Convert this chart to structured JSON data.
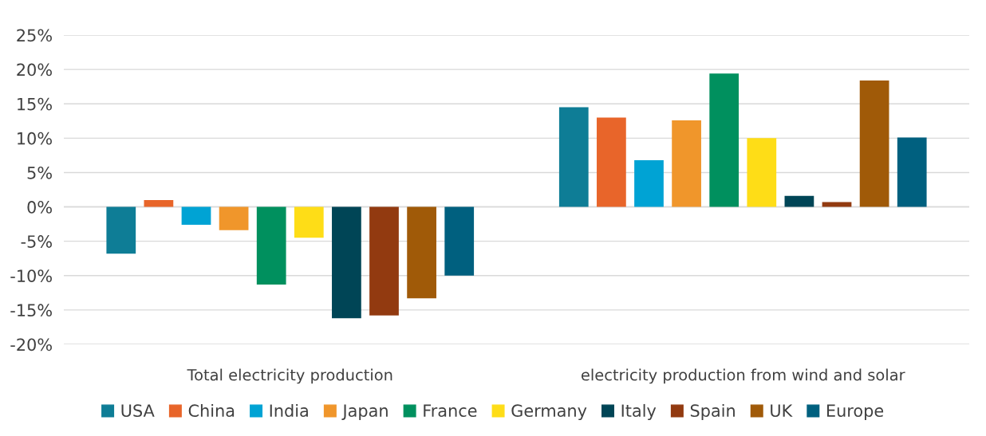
{
  "chart_data": {
    "type": "bar",
    "categories": [
      "Total electricity production",
      "electricity production from wind and solar"
    ],
    "series": [
      {
        "name": "USA",
        "color": "#0e7d96",
        "values": [
          -6.8,
          14.5
        ]
      },
      {
        "name": "China",
        "color": "#e8652a",
        "values": [
          1.0,
          13.0
        ]
      },
      {
        "name": "India",
        "color": "#00a3d4",
        "values": [
          -2.6,
          6.8
        ]
      },
      {
        "name": "Japan",
        "color": "#f0962b",
        "values": [
          -3.4,
          12.6
        ]
      },
      {
        "name": "France",
        "color": "#00905e",
        "values": [
          -11.3,
          19.4
        ]
      },
      {
        "name": "Germany",
        "color": "#fedd17",
        "values": [
          -4.5,
          10.0
        ]
      },
      {
        "name": "Italy",
        "color": "#004556",
        "values": [
          -16.2,
          1.6
        ]
      },
      {
        "name": "Spain",
        "color": "#923a10",
        "values": [
          -15.8,
          0.7
        ]
      },
      {
        "name": "UK",
        "color": "#a05a08",
        "values": [
          -13.3,
          18.4
        ]
      },
      {
        "name": "Europe",
        "color": "#00607f",
        "values": [
          -10.0,
          10.1
        ]
      }
    ],
    "ylim": [
      -20,
      25
    ],
    "yticks": [
      {
        "value": -20,
        "label": "-20%"
      },
      {
        "value": -15,
        "label": "-15%"
      },
      {
        "value": -10,
        "label": "-10%"
      },
      {
        "value": -5,
        "label": "-5%"
      },
      {
        "value": 0,
        "label": "0%"
      },
      {
        "value": 5,
        "label": "5%"
      },
      {
        "value": 10,
        "label": "10%"
      },
      {
        "value": 15,
        "label": "15%"
      },
      {
        "value": 20,
        "label": "20%"
      },
      {
        "value": 25,
        "label": "25%"
      }
    ],
    "grid": "y",
    "legend": "bottom"
  }
}
